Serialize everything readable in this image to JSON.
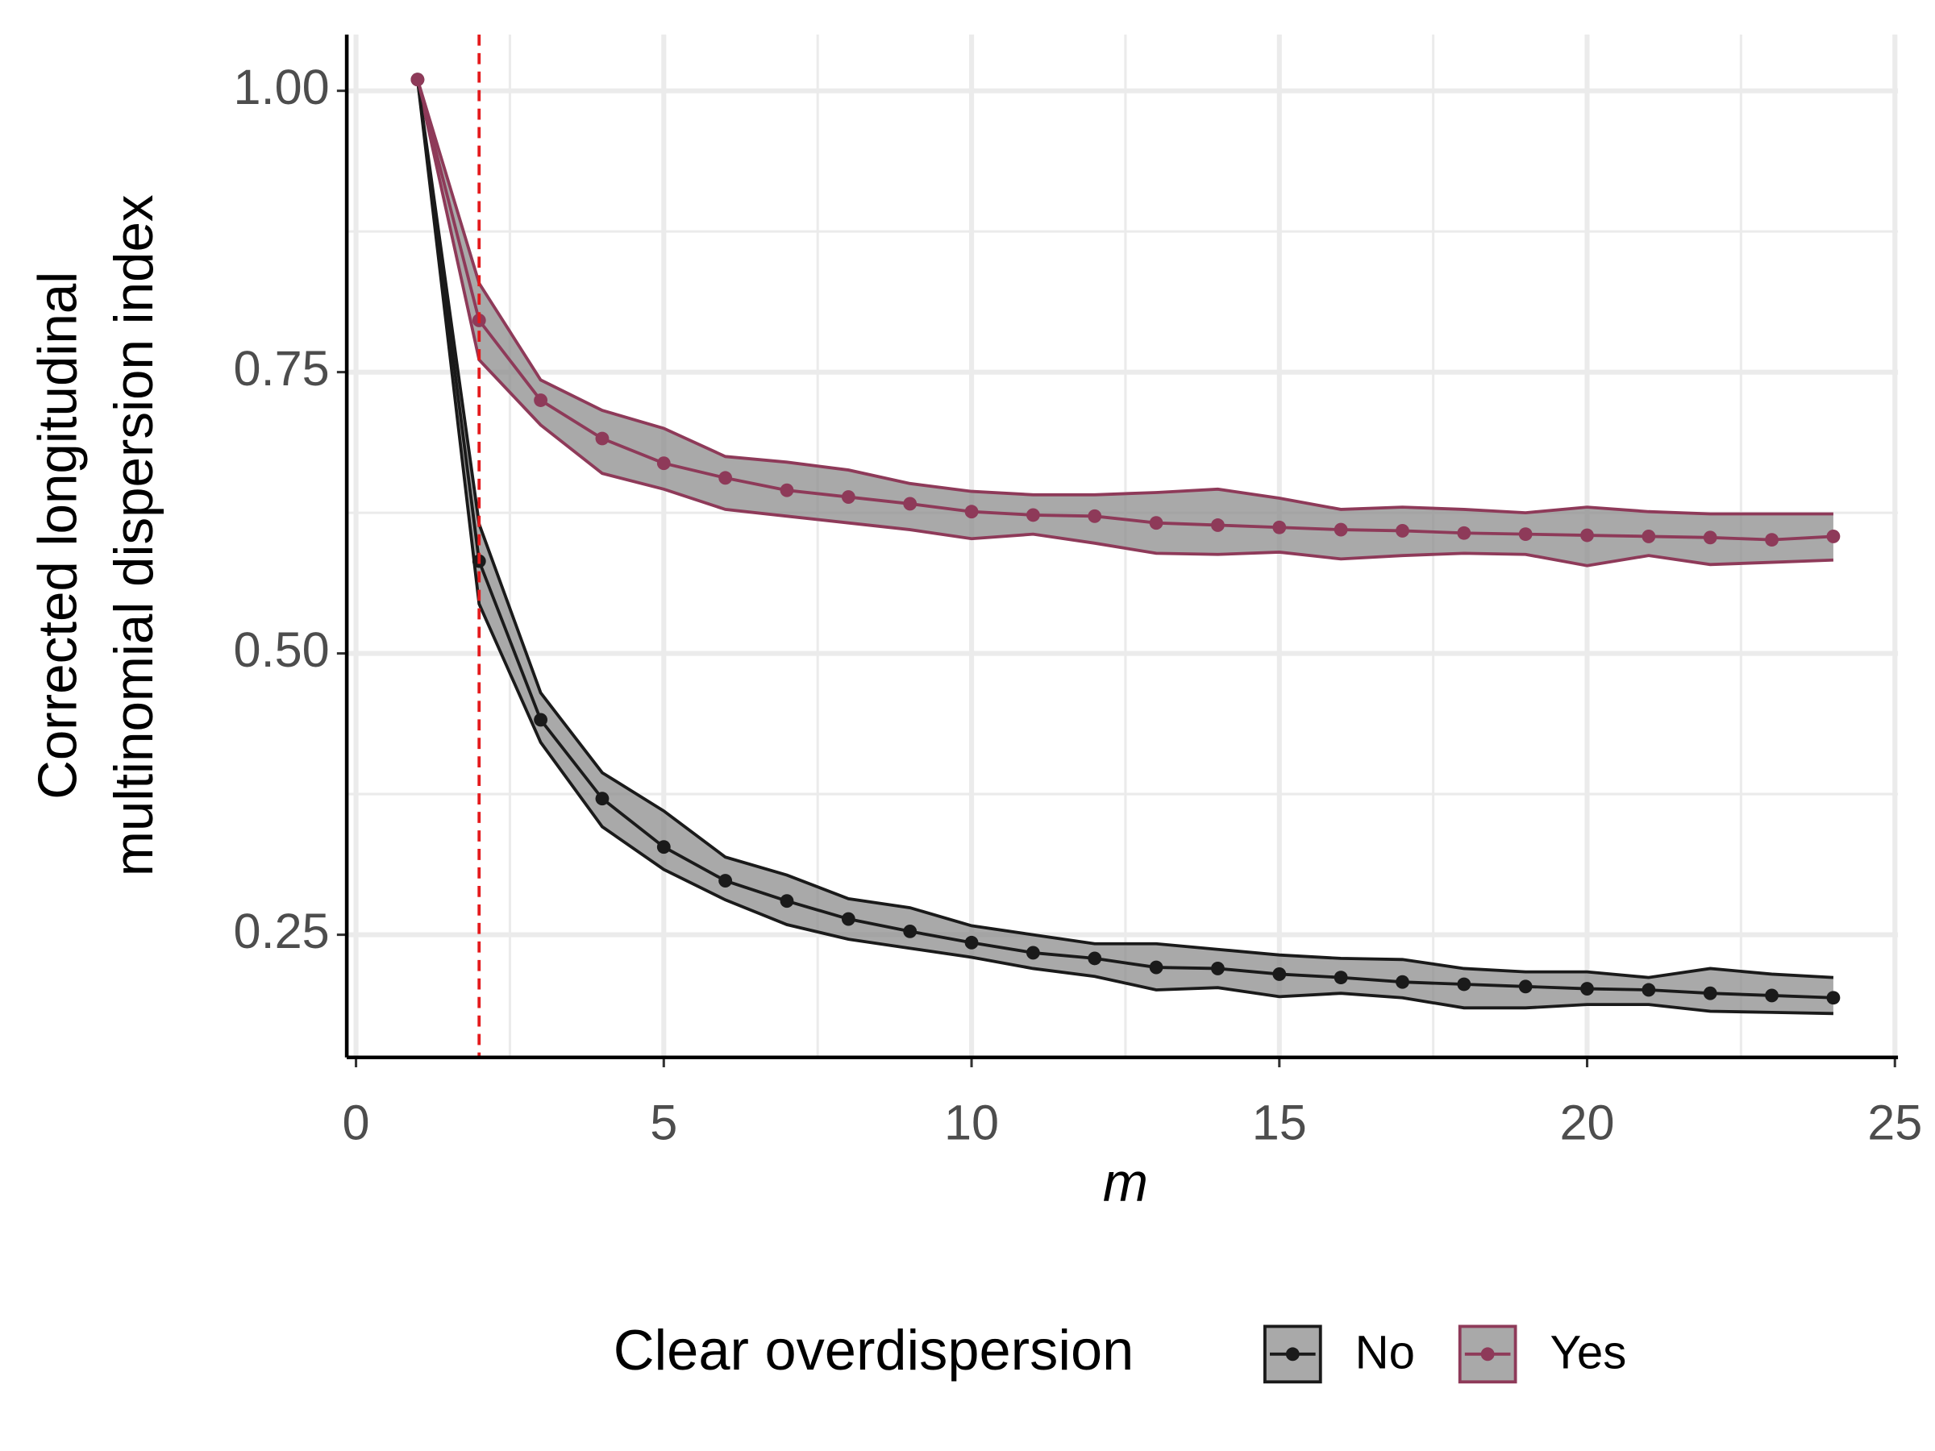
{
  "chart_data": {
    "type": "line",
    "x_label": "m",
    "y_label_lines": [
      "Corrected longitudinal",
      "multinomial dispersion index"
    ],
    "x": [
      1,
      2,
      3,
      4,
      5,
      6,
      7,
      8,
      9,
      10,
      11,
      12,
      13,
      14,
      15,
      16,
      17,
      18,
      19,
      20,
      21,
      22,
      23,
      24
    ],
    "series": [
      {
        "name": "No",
        "color": "#1a1a1a",
        "values": [
          1.01,
          0.582,
          0.441,
          0.371,
          0.328,
          0.298,
          0.28,
          0.264,
          0.253,
          0.243,
          0.234,
          0.229,
          0.221,
          0.22,
          0.215,
          0.212,
          0.208,
          0.206,
          0.204,
          0.202,
          0.201,
          0.198,
          0.196,
          0.194
        ],
        "upper": [
          1.01,
          0.615,
          0.465,
          0.394,
          0.36,
          0.319,
          0.303,
          0.282,
          0.274,
          0.258,
          0.25,
          0.242,
          0.242,
          0.237,
          0.232,
          0.229,
          0.228,
          0.22,
          0.217,
          0.217,
          0.212,
          0.22,
          0.215,
          0.212
        ],
        "lower": [
          1.01,
          0.544,
          0.421,
          0.346,
          0.308,
          0.281,
          0.259,
          0.246,
          0.238,
          0.23,
          0.22,
          0.213,
          0.201,
          0.203,
          0.195,
          0.198,
          0.194,
          0.185,
          0.185,
          0.188,
          0.188,
          0.182,
          0.181,
          0.18
        ]
      },
      {
        "name": "Yes",
        "color": "#8e3a59",
        "values": [
          1.01,
          0.796,
          0.725,
          0.691,
          0.669,
          0.656,
          0.645,
          0.639,
          0.633,
          0.626,
          0.623,
          0.622,
          0.616,
          0.614,
          0.612,
          0.61,
          0.609,
          0.607,
          0.606,
          0.605,
          0.604,
          0.603,
          0.601,
          0.604
        ],
        "upper": [
          1.01,
          0.829,
          0.743,
          0.716,
          0.7,
          0.675,
          0.67,
          0.663,
          0.651,
          0.644,
          0.641,
          0.641,
          0.643,
          0.646,
          0.638,
          0.628,
          0.63,
          0.628,
          0.625,
          0.63,
          0.626,
          0.624,
          0.624,
          0.624
        ],
        "lower": [
          1.01,
          0.761,
          0.703,
          0.66,
          0.646,
          0.628,
          0.622,
          0.616,
          0.61,
          0.602,
          0.606,
          0.598,
          0.589,
          0.588,
          0.59,
          0.584,
          0.587,
          0.589,
          0.588,
          0.578,
          0.587,
          0.579,
          0.581,
          0.583
        ]
      }
    ],
    "ribbon_color": "#8c8c8c",
    "xlim": [
      -0.15,
      25.05
    ],
    "xticks": [
      0,
      5,
      10,
      15,
      20,
      25
    ],
    "x_minor_grid": [
      2.5,
      7.5,
      12.5,
      17.5,
      22.5
    ],
    "ylim": [
      0.141,
      1.05
    ],
    "yticks": [
      {
        "value": 0.25,
        "label": "0.25"
      },
      {
        "value": 0.5,
        "label": "0.50"
      },
      {
        "value": 0.75,
        "label": "0.75"
      },
      {
        "value": 1,
        "label": "1.00"
      }
    ],
    "y_minor_grid": [
      0.375,
      0.625,
      0.875
    ],
    "vline": {
      "value": 2,
      "color": "#e41a1c"
    },
    "grid": true,
    "legend_title": "Clear overdispersion",
    "legend_position": "bottom"
  }
}
